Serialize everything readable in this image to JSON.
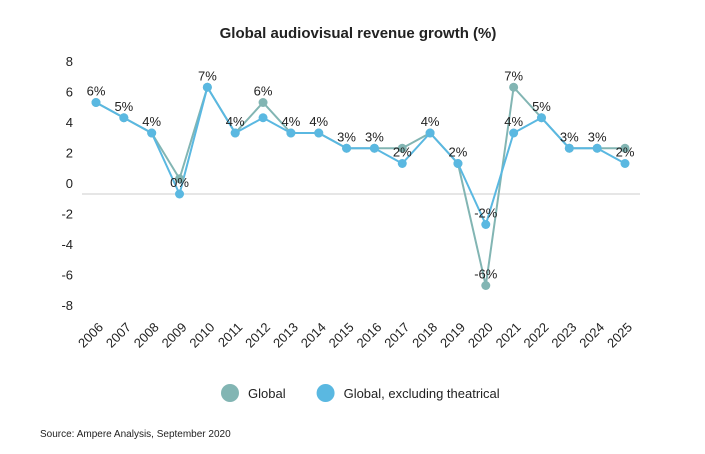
{
  "chart_data": {
    "type": "line",
    "title": "Global audiovisual revenue growth (%)",
    "source": "Source: Ampere Analysis, September 2020",
    "categories": [
      "2006",
      "2007",
      "2008",
      "2009",
      "2010",
      "2011",
      "2012",
      "2013",
      "2014",
      "2015",
      "2016",
      "2017",
      "2018",
      "2019",
      "2020",
      "2021",
      "2022",
      "2023",
      "2024",
      "2025"
    ],
    "series": [
      {
        "name": "Global",
        "color": "#82b5b3",
        "values": [
          6,
          5,
          4,
          1,
          7,
          4,
          6,
          4,
          4,
          3,
          3,
          3,
          4,
          2,
          -6,
          7,
          5,
          3,
          3,
          3
        ],
        "value_labels": [
          "6%",
          "5%",
          "4%",
          null,
          "7%",
          "4%",
          "6%",
          "4%",
          "4%",
          "3%",
          "3%",
          null,
          "4%",
          "2%",
          "-6%",
          "7%",
          "5%",
          "3%",
          "3%",
          null
        ]
      },
      {
        "name": "Global, excluding theatrical",
        "color": "#5ab8e1",
        "values": [
          6,
          5,
          4,
          0,
          7,
          4,
          5,
          4,
          4,
          3,
          3,
          2,
          4,
          2,
          -2,
          4,
          5,
          3,
          3,
          2
        ],
        "value_labels": [
          null,
          null,
          null,
          "0%",
          null,
          null,
          null,
          null,
          null,
          null,
          null,
          "2%",
          null,
          null,
          "-2%",
          "4%",
          null,
          null,
          null,
          "2%"
        ]
      }
    ],
    "ylim": [
      -8,
      8
    ],
    "yticks": [
      8,
      6,
      4,
      2,
      0,
      -2,
      -4,
      -6,
      -8
    ],
    "grid": false,
    "legend": "bottom"
  }
}
